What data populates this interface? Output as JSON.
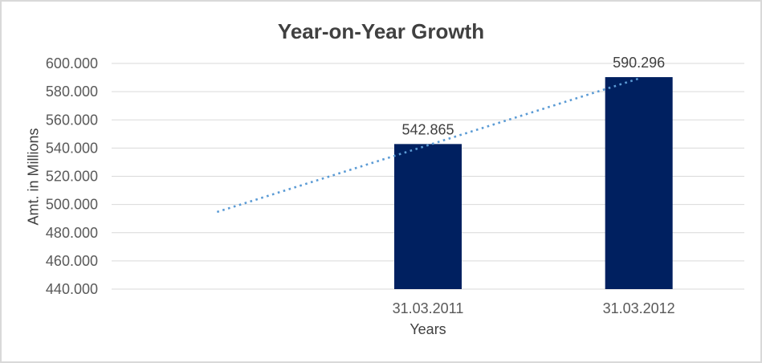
{
  "chart_data": {
    "type": "bar",
    "title": "Year-on-Year Growth",
    "xlabel": "Years",
    "ylabel": "Amt. in Millions",
    "categories": [
      "31.03.2011",
      "31.03.2012"
    ],
    "values": [
      542.865,
      590.296
    ],
    "value_labels": [
      "542.865",
      "590.296"
    ],
    "ylim": [
      440,
      600
    ],
    "ytick_step": 20,
    "ytick_labels": [
      "440.000",
      "460.000",
      "480.000",
      "500.000",
      "520.000",
      "540.000",
      "560.000",
      "580.000",
      "600.000"
    ],
    "grid": true,
    "legend": "none",
    "trendline": {
      "style": "dotted",
      "color": "#5B9BD5",
      "start_value": 494.7,
      "end_value": 589.3
    },
    "colors": {
      "bar": "#002060",
      "trendline": "#5B9BD5",
      "grid": "#d9d9d9",
      "title_text": "#404040",
      "tick_text": "#595959",
      "label_text": "#404040",
      "frame_border": "#d9d9d9",
      "background": "#ffffff"
    }
  }
}
